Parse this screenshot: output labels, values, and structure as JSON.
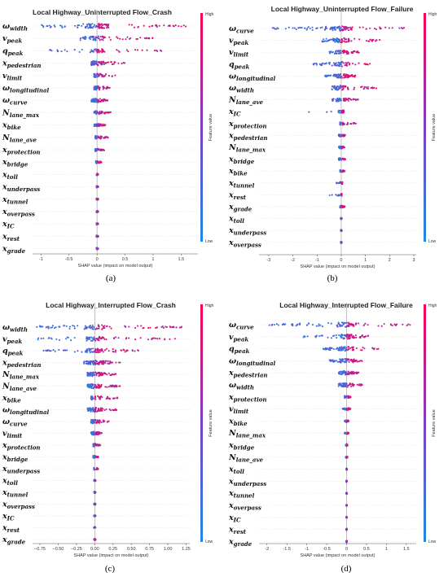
{
  "colorbar": {
    "high_label": "High",
    "low_label": "Low",
    "title": "Feature value"
  },
  "chart_data": [
    {
      "type": "beeswarm",
      "panel_label": "(a)",
      "title": "Local Highway_Uninterrupted Flow_Crash",
      "xlabel": "SHAP value (impact on model output)",
      "xlim": [
        -1.15,
        1.8
      ],
      "xticks": [
        -1.0,
        -0.5,
        0.0,
        0.5,
        1.0,
        1.5
      ],
      "features": [
        {
          "base": "ω",
          "sub": "width",
          "lo": -1.0,
          "hi": 1.7,
          "spread": 2.4
        },
        {
          "base": "v",
          "sub": "peak",
          "lo": -0.3,
          "hi": 1.0,
          "spread": 1.6
        },
        {
          "base": "q",
          "sub": "peak",
          "lo": -0.9,
          "hi": 1.2,
          "spread": 1.2
        },
        {
          "base": "x",
          "sub": "pedestrian",
          "lo": -0.1,
          "hi": 0.5,
          "spread": 1.8
        },
        {
          "base": "v",
          "sub": "limit",
          "lo": -0.05,
          "hi": 0.35,
          "spread": 1.2
        },
        {
          "base": "ω",
          "sub": "longitudinal",
          "lo": -0.05,
          "hi": 0.3,
          "spread": 1.3
        },
        {
          "base": "ω",
          "sub": "curve",
          "lo": -0.1,
          "hi": 0.2,
          "spread": 1.4
        },
        {
          "base": "N",
          "sub": "lane_max",
          "lo": -0.05,
          "hi": 0.25,
          "spread": 1
        },
        {
          "base": "x",
          "sub": "bike",
          "lo": -0.05,
          "hi": 0.15,
          "spread": 1
        },
        {
          "base": "N",
          "sub": "lane_ave",
          "lo": -0.03,
          "hi": 0.2,
          "spread": 1
        },
        {
          "base": "x",
          "sub": "protection",
          "lo": -0.03,
          "hi": 0.15,
          "spread": 1
        },
        {
          "base": "x",
          "sub": "bridge",
          "lo": -0.02,
          "hi": 0.08,
          "spread": 0.8
        },
        {
          "base": "x",
          "sub": "toll",
          "lo": -0.01,
          "hi": 0.02,
          "spread": 0.5
        },
        {
          "base": "x",
          "sub": "underpass",
          "lo": -0.01,
          "hi": 0.02,
          "spread": 0.5
        },
        {
          "base": "x",
          "sub": "tunnel",
          "lo": -0.01,
          "hi": 0.02,
          "spread": 0.5
        },
        {
          "base": "x",
          "sub": "overpass",
          "lo": -0.01,
          "hi": 0.02,
          "spread": 0.5
        },
        {
          "base": "x",
          "sub": "IC",
          "lo": -0.01,
          "hi": 0.02,
          "spread": 0.5
        },
        {
          "base": "x",
          "sub": "rest",
          "lo": -0.01,
          "hi": 0.02,
          "spread": 0.5
        },
        {
          "base": "x",
          "sub": "grade",
          "lo": -0.01,
          "hi": 0.02,
          "spread": 0.5
        }
      ]
    },
    {
      "type": "beeswarm",
      "panel_label": "(b)",
      "title": "Local Highway_Uninterrupted Flow_Failure",
      "xlabel": "SHAP value (impact on model output)",
      "xlim": [
        -3.4,
        3.1
      ],
      "xticks": [
        -3,
        -2,
        -1,
        0,
        1,
        2,
        3
      ],
      "features": [
        {
          "base": "ω",
          "sub": "curve",
          "lo": -3.0,
          "hi": 2.6,
          "spread": 2.4
        },
        {
          "base": "v",
          "sub": "peak",
          "lo": -0.8,
          "hi": 1.6,
          "spread": 1.8
        },
        {
          "base": "v",
          "sub": "limit",
          "lo": -0.5,
          "hi": 0.8,
          "spread": 1.4
        },
        {
          "base": "q",
          "sub": "peak",
          "lo": -1.2,
          "hi": 1.3,
          "spread": 1.6
        },
        {
          "base": "ω",
          "sub": "longitudinal",
          "lo": -0.7,
          "hi": 0.6,
          "spread": 1.7
        },
        {
          "base": "ω",
          "sub": "width",
          "lo": -0.4,
          "hi": 1.6,
          "spread": 1.5
        },
        {
          "base": "N",
          "sub": "lane_ave",
          "lo": -0.4,
          "hi": 0.7,
          "spread": 1.2
        },
        {
          "base": "x",
          "sub": "IC",
          "lo": -1.4,
          "hi": 0.1,
          "spread": 0.8
        },
        {
          "base": "x",
          "sub": "protection",
          "lo": -0.05,
          "hi": 0.6,
          "spread": 0.9
        },
        {
          "base": "x",
          "sub": "pedestrian",
          "lo": -0.1,
          "hi": 0.2,
          "spread": 0.8
        },
        {
          "base": "N",
          "sub": "lane_max",
          "lo": -0.1,
          "hi": 0.15,
          "spread": 0.8
        },
        {
          "base": "x",
          "sub": "bridge",
          "lo": -0.1,
          "hi": 0.2,
          "spread": 0.7
        },
        {
          "base": "x",
          "sub": "bike",
          "lo": -0.05,
          "hi": 0.15,
          "spread": 0.7
        },
        {
          "base": "x",
          "sub": "tunnel",
          "lo": -0.2,
          "hi": 0.05,
          "spread": 0.6
        },
        {
          "base": "x",
          "sub": "rest",
          "lo": -0.5,
          "hi": 0.02,
          "spread": 0.6
        },
        {
          "base": "x",
          "sub": "grade",
          "lo": -0.05,
          "hi": 0.15,
          "spread": 0.6
        },
        {
          "base": "x",
          "sub": "toll",
          "lo": -0.02,
          "hi": 0.02,
          "spread": 0.5
        },
        {
          "base": "x",
          "sub": "underpass",
          "lo": -0.02,
          "hi": 0.02,
          "spread": 0.5
        },
        {
          "base": "x",
          "sub": "overpass",
          "lo": -0.02,
          "hi": 0.02,
          "spread": 0.5
        }
      ]
    },
    {
      "type": "beeswarm",
      "panel_label": "(c)",
      "title": "Local Highway_Interrupted Flow_Crash",
      "xlabel": "SHAP value (impact on model output)",
      "xlim": [
        -0.85,
        1.3
      ],
      "xticks": [
        -0.75,
        -0.5,
        -0.25,
        0.0,
        0.25,
        0.5,
        0.75,
        1.0,
        1.25
      ],
      "xtick_labels": [
        "−0.75",
        "−0.50",
        "−0.25",
        "0.00",
        "0.25",
        "0.50",
        "0.75",
        "1.00",
        "1.25"
      ],
      "features": [
        {
          "base": "ω",
          "sub": "width",
          "lo": -0.8,
          "hi": 1.2,
          "spread": 2.2
        },
        {
          "base": "v",
          "sub": "peak",
          "lo": -0.8,
          "hi": 1.1,
          "spread": 1.8
        },
        {
          "base": "q",
          "sub": "peak",
          "lo": -0.7,
          "hi": 0.6,
          "spread": 2.0
        },
        {
          "base": "x",
          "sub": "pedestrian",
          "lo": -0.15,
          "hi": 0.35,
          "spread": 2.0
        },
        {
          "base": "N",
          "sub": "lane_max",
          "lo": -0.1,
          "hi": 0.3,
          "spread": 1.8
        },
        {
          "base": "N",
          "sub": "lane_ave",
          "lo": -0.1,
          "hi": 0.35,
          "spread": 1.7
        },
        {
          "base": "x",
          "sub": "bike",
          "lo": -0.05,
          "hi": 0.35,
          "spread": 1.2
        },
        {
          "base": "ω",
          "sub": "longitudinal",
          "lo": -0.1,
          "hi": 0.3,
          "spread": 1.5
        },
        {
          "base": "ω",
          "sub": "curve",
          "lo": -0.05,
          "hi": 0.2,
          "spread": 1.3
        },
        {
          "base": "v",
          "sub": "limit",
          "lo": -0.05,
          "hi": 0.1,
          "spread": 1.2
        },
        {
          "base": "x",
          "sub": "protection",
          "lo": -0.02,
          "hi": 0.08,
          "spread": 0.9
        },
        {
          "base": "x",
          "sub": "bridge",
          "lo": -0.02,
          "hi": 0.05,
          "spread": 0.8
        },
        {
          "base": "x",
          "sub": "underpass",
          "lo": -0.01,
          "hi": 0.05,
          "spread": 0.6
        },
        {
          "base": "x",
          "sub": "toll",
          "lo": -0.01,
          "hi": 0.01,
          "spread": 0.5
        },
        {
          "base": "x",
          "sub": "tunnel",
          "lo": -0.01,
          "hi": 0.01,
          "spread": 0.5
        },
        {
          "base": "x",
          "sub": "overpass",
          "lo": -0.01,
          "hi": 0.01,
          "spread": 0.5
        },
        {
          "base": "x",
          "sub": "IC",
          "lo": -0.01,
          "hi": 0.01,
          "spread": 0.5
        },
        {
          "base": "x",
          "sub": "rest",
          "lo": -0.01,
          "hi": 0.01,
          "spread": 0.5
        },
        {
          "base": "x",
          "sub": "grade",
          "lo": -0.01,
          "hi": 0.01,
          "spread": 0.5
        }
      ]
    },
    {
      "type": "beeswarm",
      "panel_label": "(d)",
      "title": "Local Highway_Interrupted Flow_Failure",
      "xlabel": "SHAP value (impact on model output)",
      "xlim": [
        -2.2,
        1.75
      ],
      "xticks": [
        -2.0,
        -1.5,
        -1.0,
        -0.5,
        0.0,
        0.5,
        1.0,
        1.5
      ],
      "features": [
        {
          "base": "ω",
          "sub": "curve",
          "lo": -2.0,
          "hi": 1.6,
          "spread": 2.2
        },
        {
          "base": "v",
          "sub": "peak",
          "lo": -1.2,
          "hi": 0.6,
          "spread": 1.7
        },
        {
          "base": "q",
          "sub": "peak",
          "lo": -0.6,
          "hi": 0.8,
          "spread": 1.6
        },
        {
          "base": "ω",
          "sub": "longitudinal",
          "lo": -0.5,
          "hi": 0.4,
          "spread": 1.6
        },
        {
          "base": "x",
          "sub": "pedestrian",
          "lo": -0.2,
          "hi": 0.3,
          "spread": 1.6
        },
        {
          "base": "ω",
          "sub": "width",
          "lo": -0.2,
          "hi": 0.4,
          "spread": 1.5
        },
        {
          "base": "x",
          "sub": "protection",
          "lo": -0.05,
          "hi": 0.1,
          "spread": 1.0
        },
        {
          "base": "v",
          "sub": "limit",
          "lo": -0.1,
          "hi": 0.1,
          "spread": 0.9
        },
        {
          "base": "x",
          "sub": "bike",
          "lo": -0.05,
          "hi": 0.05,
          "spread": 0.8
        },
        {
          "base": "N",
          "sub": "lane_max",
          "lo": -0.05,
          "hi": 0.05,
          "spread": 0.7
        },
        {
          "base": "x",
          "sub": "bridge",
          "lo": -0.02,
          "hi": 0.02,
          "spread": 0.6
        },
        {
          "base": "N",
          "sub": "lane_ave",
          "lo": -0.02,
          "hi": 0.02,
          "spread": 0.6
        },
        {
          "base": "x",
          "sub": "toll",
          "lo": -0.01,
          "hi": 0.01,
          "spread": 0.5
        },
        {
          "base": "x",
          "sub": "underpass",
          "lo": -0.01,
          "hi": 0.01,
          "spread": 0.5
        },
        {
          "base": "x",
          "sub": "tunnel",
          "lo": -0.01,
          "hi": 0.01,
          "spread": 0.5
        },
        {
          "base": "x",
          "sub": "overpass",
          "lo": -0.01,
          "hi": 0.01,
          "spread": 0.5
        },
        {
          "base": "x",
          "sub": "IC",
          "lo": -0.01,
          "hi": 0.01,
          "spread": 0.5
        },
        {
          "base": "x",
          "sub": "rest",
          "lo": -0.01,
          "hi": 0.01,
          "spread": 0.5
        },
        {
          "base": "x",
          "sub": "grade",
          "lo": -0.01,
          "hi": 0.01,
          "spread": 0.5
        }
      ]
    }
  ]
}
